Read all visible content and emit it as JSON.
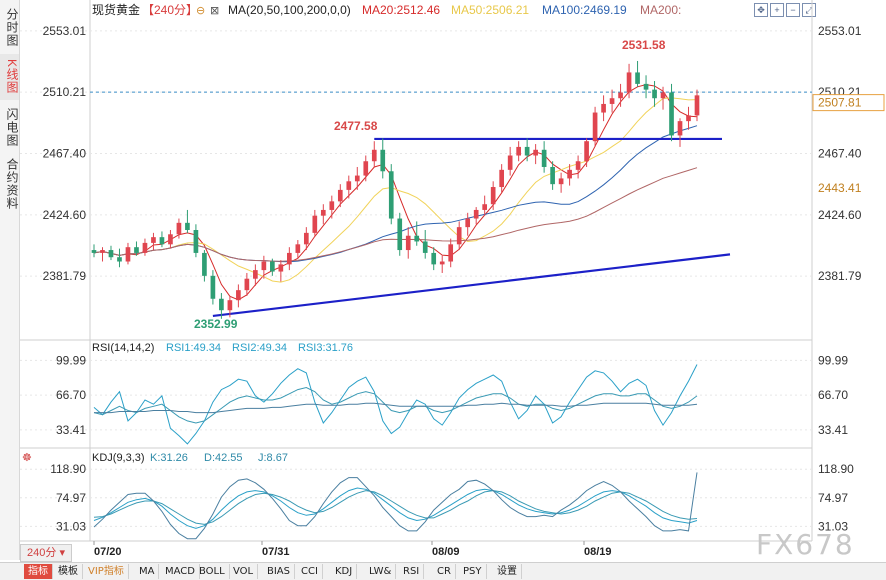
{
  "left_rail": {
    "tabs": [
      {
        "label": "分时图",
        "active": false
      },
      {
        "label": "K线图",
        "active": true
      },
      {
        "label": "闪电图",
        "active": false
      },
      {
        "label": "合约资料",
        "active": false
      }
    ]
  },
  "header": {
    "instrument": "现货黄金",
    "period": "【240分】",
    "ma_label": "MA(20,50,100,200,0,0)",
    "ma20": "MA20:2512.46",
    "ma50": "MA50:2506.21",
    "ma100": "MA100:2469.19",
    "ma200": "MA200:"
  },
  "colors": {
    "up": "#e0454f",
    "down": "#2e9e74",
    "ma20": "#d62a2a",
    "ma50": "#f1d35a",
    "ma100": "#2e63b0",
    "ma200": "#b06666",
    "trend": "#1c20c8",
    "rsi": "#2aa0c8",
    "kdj": "#2f8aa8"
  },
  "chart_data": [
    {
      "type": "candlestick",
      "panel": "price",
      "ylim": [
        2340,
        2562
      ],
      "yticks": [
        "2553.01",
        "2510.21",
        "2467.40",
        "2424.60",
        "2381.79"
      ],
      "xticks": [
        "07/20",
        "07/31",
        "08/09",
        "08/19"
      ],
      "annotations": {
        "high": "2531.58",
        "low": "2352.99",
        "resistance": "2477.58"
      },
      "price_tags": {
        "last": "2507.81",
        "ma100_tag": "2443.41"
      },
      "current_line": 2510.21,
      "candles": [
        [
          2400,
          2404,
          2395,
          2398
        ],
        [
          2398,
          2402,
          2392,
          2400
        ],
        [
          2400,
          2403,
          2393,
          2395
        ],
        [
          2395,
          2401,
          2388,
          2392
        ],
        [
          2392,
          2405,
          2390,
          2402
        ],
        [
          2402,
          2406,
          2396,
          2398
        ],
        [
          2398,
          2408,
          2396,
          2405
        ],
        [
          2405,
          2412,
          2400,
          2409
        ],
        [
          2409,
          2413,
          2402,
          2404
        ],
        [
          2404,
          2414,
          2401,
          2411
        ],
        [
          2411,
          2422,
          2408,
          2419
        ],
        [
          2419,
          2428,
          2412,
          2414
        ],
        [
          2414,
          2418,
          2395,
          2398
        ],
        [
          2398,
          2400,
          2378,
          2382
        ],
        [
          2382,
          2386,
          2362,
          2366
        ],
        [
          2366,
          2370,
          2352,
          2358
        ],
        [
          2358,
          2368,
          2353,
          2365
        ],
        [
          2365,
          2376,
          2360,
          2372
        ],
        [
          2372,
          2384,
          2368,
          2380
        ],
        [
          2380,
          2390,
          2375,
          2386
        ],
        [
          2386,
          2396,
          2380,
          2392
        ],
        [
          2392,
          2394,
          2382,
          2385
        ],
        [
          2385,
          2393,
          2378,
          2390
        ],
        [
          2390,
          2402,
          2386,
          2398
        ],
        [
          2398,
          2407,
          2394,
          2404
        ],
        [
          2404,
          2416,
          2400,
          2412
        ],
        [
          2412,
          2428,
          2410,
          2424
        ],
        [
          2424,
          2432,
          2418,
          2428
        ],
        [
          2428,
          2438,
          2422,
          2434
        ],
        [
          2434,
          2446,
          2430,
          2442
        ],
        [
          2442,
          2452,
          2436,
          2448
        ],
        [
          2448,
          2458,
          2442,
          2452
        ],
        [
          2452,
          2466,
          2448,
          2462
        ],
        [
          2462,
          2476,
          2458,
          2470
        ],
        [
          2470,
          2478,
          2450,
          2455
        ],
        [
          2455,
          2460,
          2418,
          2422
        ],
        [
          2422,
          2426,
          2396,
          2400
        ],
        [
          2400,
          2416,
          2394,
          2410
        ],
        [
          2410,
          2420,
          2403,
          2406
        ],
        [
          2406,
          2414,
          2394,
          2398
        ],
        [
          2398,
          2402,
          2386,
          2390
        ],
        [
          2390,
          2396,
          2384,
          2392
        ],
        [
          2392,
          2408,
          2388,
          2404
        ],
        [
          2404,
          2420,
          2400,
          2416
        ],
        [
          2416,
          2426,
          2410,
          2422
        ],
        [
          2422,
          2430,
          2418,
          2428
        ],
        [
          2428,
          2438,
          2424,
          2432
        ],
        [
          2432,
          2448,
          2428,
          2444
        ],
        [
          2444,
          2460,
          2440,
          2456
        ],
        [
          2456,
          2472,
          2452,
          2466
        ],
        [
          2466,
          2476,
          2462,
          2472
        ],
        [
          2472,
          2478,
          2462,
          2466
        ],
        [
          2466,
          2474,
          2460,
          2470
        ],
        [
          2470,
          2476,
          2454,
          2458
        ],
        [
          2458,
          2462,
          2442,
          2446
        ],
        [
          2446,
          2454,
          2440,
          2450
        ],
        [
          2450,
          2460,
          2445,
          2456
        ],
        [
          2456,
          2466,
          2450,
          2462
        ],
        [
          2462,
          2478,
          2458,
          2476
        ],
        [
          2476,
          2500,
          2472,
          2496
        ],
        [
          2496,
          2508,
          2490,
          2502
        ],
        [
          2502,
          2512,
          2496,
          2506
        ],
        [
          2506,
          2516,
          2500,
          2510
        ],
        [
          2510,
          2530,
          2506,
          2524
        ],
        [
          2524,
          2532,
          2514,
          2516
        ],
        [
          2516,
          2522,
          2506,
          2512
        ],
        [
          2512,
          2518,
          2500,
          2506
        ],
        [
          2506,
          2514,
          2498,
          2510
        ],
        [
          2510,
          2516,
          2476,
          2480
        ],
        [
          2480,
          2492,
          2472,
          2490
        ],
        [
          2490,
          2500,
          2484,
          2494
        ],
        [
          2494,
          2512,
          2490,
          2508
        ]
      ]
    },
    {
      "type": "line",
      "panel": "rsi",
      "title": "RSI(14,14,2)",
      "ylim": [
        18,
        108
      ],
      "yticks": [
        "99.99",
        "66.70",
        "33.41"
      ],
      "series": [
        {
          "name": "RSI1:49.34",
          "values": [
            55,
            48,
            60,
            70,
            42,
            50,
            62,
            58,
            66,
            35,
            28,
            20,
            30,
            42,
            60,
            72,
            76,
            82,
            80,
            66,
            60,
            68,
            78,
            86,
            92,
            88,
            60,
            40,
            50,
            62,
            74,
            80,
            84,
            70,
            42,
            30,
            36,
            50,
            62,
            58,
            44,
            38,
            50,
            64,
            72,
            78,
            82,
            86,
            80,
            60,
            44,
            52,
            66,
            58,
            40,
            46,
            60,
            72,
            84,
            90,
            88,
            80,
            70,
            78,
            82,
            76,
            52,
            38,
            50,
            66,
            80,
            96
          ]
        },
        {
          "name": "RSI2:49.34",
          "values": [
            50,
            48,
            52,
            56,
            52,
            50,
            54,
            56,
            58,
            52,
            46,
            42,
            40,
            42,
            48,
            54,
            60,
            64,
            66,
            64,
            62,
            62,
            64,
            68,
            72,
            74,
            70,
            62,
            58,
            60,
            64,
            68,
            70,
            68,
            60,
            52,
            50,
            52,
            56,
            56,
            52,
            50,
            52,
            56,
            60,
            64,
            66,
            68,
            68,
            64,
            58,
            56,
            58,
            58,
            54,
            52,
            54,
            58,
            62,
            66,
            68,
            68,
            66,
            66,
            68,
            68,
            62,
            56,
            54,
            56,
            60,
            66
          ]
        },
        {
          "name": "RSI3:31.76",
          "values": [
            50,
            50,
            50,
            51,
            51,
            51,
            51,
            52,
            52,
            52,
            51,
            51,
            50,
            50,
            50,
            51,
            52,
            53,
            54,
            54,
            54,
            55,
            55,
            56,
            57,
            58,
            58,
            57,
            57,
            57,
            58,
            58,
            59,
            59,
            58,
            57,
            56,
            56,
            56,
            56,
            56,
            56,
            56,
            56,
            57,
            57,
            58,
            58,
            59,
            58,
            58,
            57,
            57,
            57,
            57,
            56,
            56,
            57,
            57,
            58,
            59,
            59,
            59,
            59,
            59,
            59,
            58,
            57,
            57,
            57,
            57,
            58
          ]
        }
      ]
    },
    {
      "type": "line",
      "panel": "kdj",
      "title": "KDJ(9,3,3)",
      "ylim": [
        10,
        130
      ],
      "yticks": [
        "118.90",
        "74.97",
        "31.03"
      ],
      "series": [
        {
          "name": "K:31.26",
          "values": [
            40,
            45,
            52,
            60,
            68,
            72,
            74,
            70,
            62,
            50,
            40,
            32,
            28,
            32,
            42,
            56,
            68,
            78,
            84,
            86,
            84,
            78,
            70,
            60,
            52,
            48,
            50,
            58,
            68,
            78,
            86,
            90,
            88,
            82,
            72,
            62,
            52,
            44,
            40,
            42,
            48,
            56,
            64,
            72,
            80,
            86,
            88,
            86,
            80,
            72,
            64,
            58,
            54,
            52,
            50,
            52,
            56,
            62,
            70,
            78,
            84,
            86,
            84,
            78,
            70,
            62,
            52,
            44,
            40,
            38,
            36,
            40
          ]
        },
        {
          "name": "D:42.55",
          "values": [
            45,
            46,
            50,
            56,
            62,
            67,
            70,
            70,
            66,
            58,
            50,
            42,
            36,
            34,
            38,
            46,
            56,
            66,
            74,
            80,
            82,
            80,
            76,
            70,
            62,
            56,
            52,
            54,
            60,
            68,
            76,
            82,
            86,
            84,
            78,
            70,
            62,
            54,
            48,
            44,
            44,
            50,
            56,
            64,
            70,
            78,
            84,
            86,
            84,
            78,
            70,
            64,
            58,
            54,
            52,
            50,
            52,
            56,
            62,
            70,
            76,
            82,
            84,
            82,
            76,
            70,
            62,
            54,
            48,
            44,
            42,
            43
          ]
        },
        {
          "name": "J:8.67",
          "values": [
            30,
            42,
            56,
            68,
            80,
            82,
            82,
            70,
            54,
            34,
            20,
            12,
            12,
            28,
            50,
            76,
            92,
            102,
            104,
            98,
            88,
            74,
            58,
            40,
            32,
            32,
            46,
            66,
            84,
            98,
            106,
            106,
            92,
            78,
            60,
            46,
            32,
            24,
            24,
            38,
            56,
            68,
            80,
            88,
            100,
            102,
            96,
            86,
            72,
            60,
            52,
            46,
            46,
            48,
            46,
            56,
            64,
            74,
            86,
            94,
            100,
            94,
            84,
            70,
            58,
            46,
            32,
            24,
            24,
            26,
            24,
            114
          ]
        }
      ]
    }
  ],
  "indicator_tabs": [
    "指标",
    "模板",
    "VIP指标",
    "MA",
    "MACD",
    "BOLL",
    "VOL",
    "BIAS",
    "CCI",
    "KDJ",
    "LW&",
    "RSI",
    "CR",
    "PSY",
    "设置"
  ],
  "period_select": "240分",
  "watermark": "FX678"
}
